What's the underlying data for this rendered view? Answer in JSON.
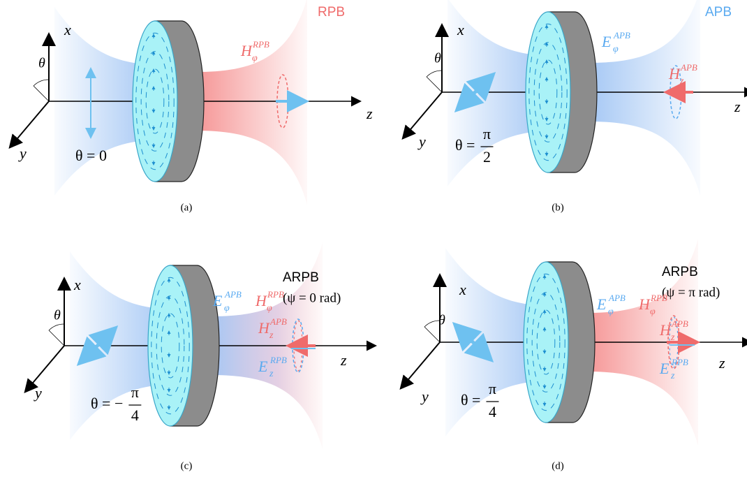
{
  "panels": [
    {
      "label": "(a)",
      "beam": "RPB",
      "axes": {
        "x": "x",
        "y": "y",
        "z": "z",
        "angle": "θ"
      },
      "theta": {
        "text": "θ = 0"
      },
      "fields": [
        {
          "base": "H",
          "sub": "φ",
          "sup": "RPB"
        }
      ]
    },
    {
      "label": "(b)",
      "beam": "APB",
      "axes": {
        "x": "x",
        "y": "y",
        "z": "z",
        "angle": "θ"
      },
      "theta": {
        "prefix": "θ =",
        "num": "π",
        "den": "2"
      },
      "fields": [
        {
          "base": "E",
          "sub": "φ",
          "sup": "APB"
        },
        {
          "base": "H",
          "sub": "z",
          "sup": "APB"
        }
      ]
    },
    {
      "label": "(c)",
      "beam": "ARPB",
      "phase": "(ψ = 0 rad)",
      "axes": {
        "x": "x",
        "y": "y",
        "z": "z",
        "angle": "θ"
      },
      "theta": {
        "prefix": "θ = −",
        "num": "π",
        "den": "4"
      },
      "fields": [
        {
          "base": "E",
          "sub": "φ",
          "sup": "APB"
        },
        {
          "base": "H",
          "sub": "φ",
          "sup": "RPB"
        },
        {
          "base": "H",
          "sub": "z",
          "sup": "APB"
        },
        {
          "base": "E",
          "sub": "z",
          "sup": "RPB"
        }
      ]
    },
    {
      "label": "(d)",
      "beam": "ARPB",
      "phase": "(ψ = π rad)",
      "axes": {
        "x": "x",
        "y": "y",
        "z": "z",
        "angle": "θ"
      },
      "theta": {
        "prefix": "θ =",
        "num": "π",
        "den": "4"
      },
      "fields": [
        {
          "base": "E",
          "sub": "φ",
          "sup": "APB"
        },
        {
          "base": "H",
          "sub": "φ",
          "sup": "RPB"
        },
        {
          "base": "H",
          "sub": "z",
          "sup": "APB"
        },
        {
          "base": "E",
          "sub": "z",
          "sup": "RPB"
        }
      ]
    }
  ]
}
